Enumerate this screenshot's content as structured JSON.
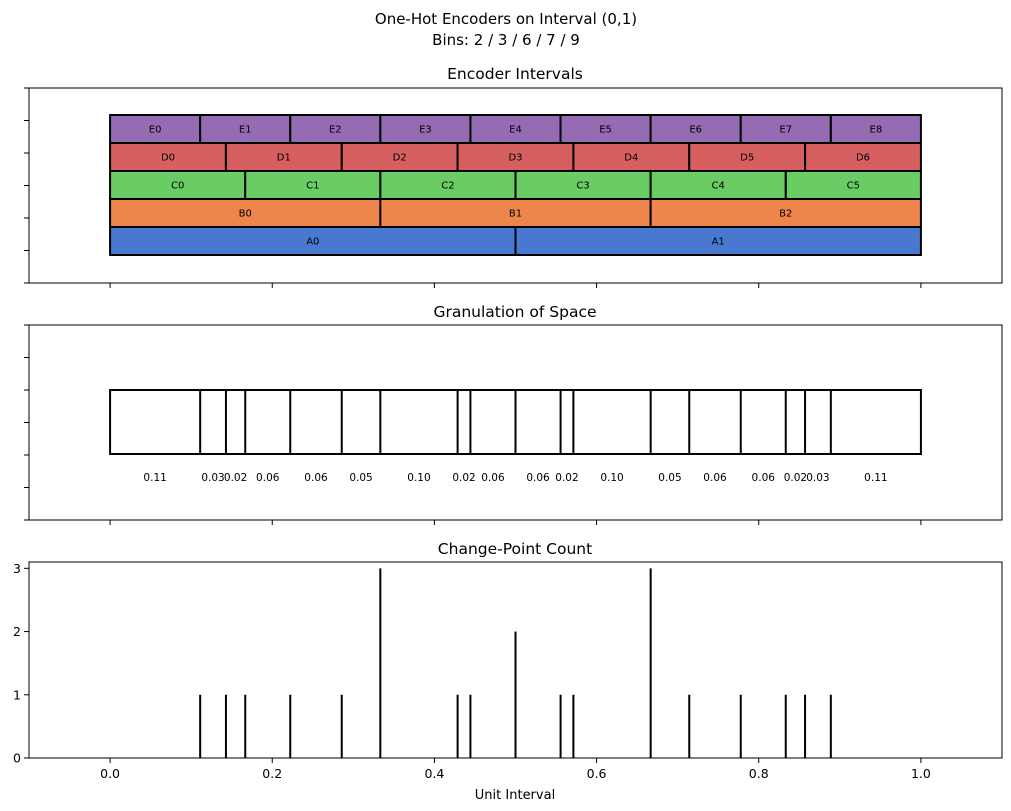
{
  "figure": {
    "title_line1": "One-Hot Encoders on Interval (0,1)",
    "title_line2": "Bins: 2 / 3 / 6 / 7 / 9",
    "xlabel": "Unit Interval",
    "xticks": [
      "0.0",
      "0.2",
      "0.4",
      "0.6",
      "0.8",
      "1.0"
    ]
  },
  "colors": {
    "A": "#4878cf",
    "B": "#ee854a",
    "C": "#6acc64",
    "D": "#d65f5f",
    "E": "#956cb4",
    "edge": "#000000"
  },
  "chart_data": [
    {
      "type": "bar",
      "title": "Encoder Intervals",
      "xlim": [
        -0.1,
        1.1
      ],
      "encoders": [
        {
          "name": "A",
          "bins": 2,
          "labels": [
            "A0",
            "A1"
          ]
        },
        {
          "name": "B",
          "bins": 3,
          "labels": [
            "B0",
            "B1",
            "B2"
          ]
        },
        {
          "name": "C",
          "bins": 6,
          "labels": [
            "C0",
            "C1",
            "C2",
            "C3",
            "C4",
            "C5"
          ]
        },
        {
          "name": "D",
          "bins": 7,
          "labels": [
            "D0",
            "D1",
            "D2",
            "D3",
            "D4",
            "D5",
            "D6"
          ]
        },
        {
          "name": "E",
          "bins": 9,
          "labels": [
            "E0",
            "E1",
            "E2",
            "E3",
            "E4",
            "E5",
            "E6",
            "E7",
            "E8"
          ]
        }
      ]
    },
    {
      "type": "bar",
      "title": "Granulation of Space",
      "xlim": [
        -0.1,
        1.1
      ],
      "boundaries": [
        0.0,
        0.1111,
        0.1429,
        0.1667,
        0.2222,
        0.2857,
        0.3333,
        0.4286,
        0.4444,
        0.5,
        0.5556,
        0.5714,
        0.6667,
        0.7143,
        0.7778,
        0.8333,
        0.8571,
        0.8889,
        1.0
      ],
      "width_labels": [
        "0.11",
        "0.03",
        "0.02",
        "0.06",
        "0.06",
        "0.05",
        "0.10",
        "0.02",
        "0.06",
        "0.06",
        "0.02",
        "0.10",
        "0.05",
        "0.06",
        "0.06",
        "0.02",
        "0.03",
        "0.11"
      ]
    },
    {
      "type": "bar",
      "title": "Change-Point Count",
      "xlim": [
        -0.1,
        1.1
      ],
      "ylim": [
        0,
        3.1
      ],
      "yticks": [
        "0",
        "1",
        "2",
        "3"
      ],
      "x": [
        0.1111,
        0.1429,
        0.1667,
        0.2222,
        0.2857,
        0.3333,
        0.4286,
        0.4444,
        0.5,
        0.5556,
        0.5714,
        0.6667,
        0.7143,
        0.7778,
        0.8333,
        0.8571,
        0.8889
      ],
      "values": [
        1,
        1,
        1,
        1,
        1,
        3,
        1,
        1,
        2,
        1,
        1,
        3,
        1,
        1,
        1,
        1,
        1
      ]
    }
  ]
}
